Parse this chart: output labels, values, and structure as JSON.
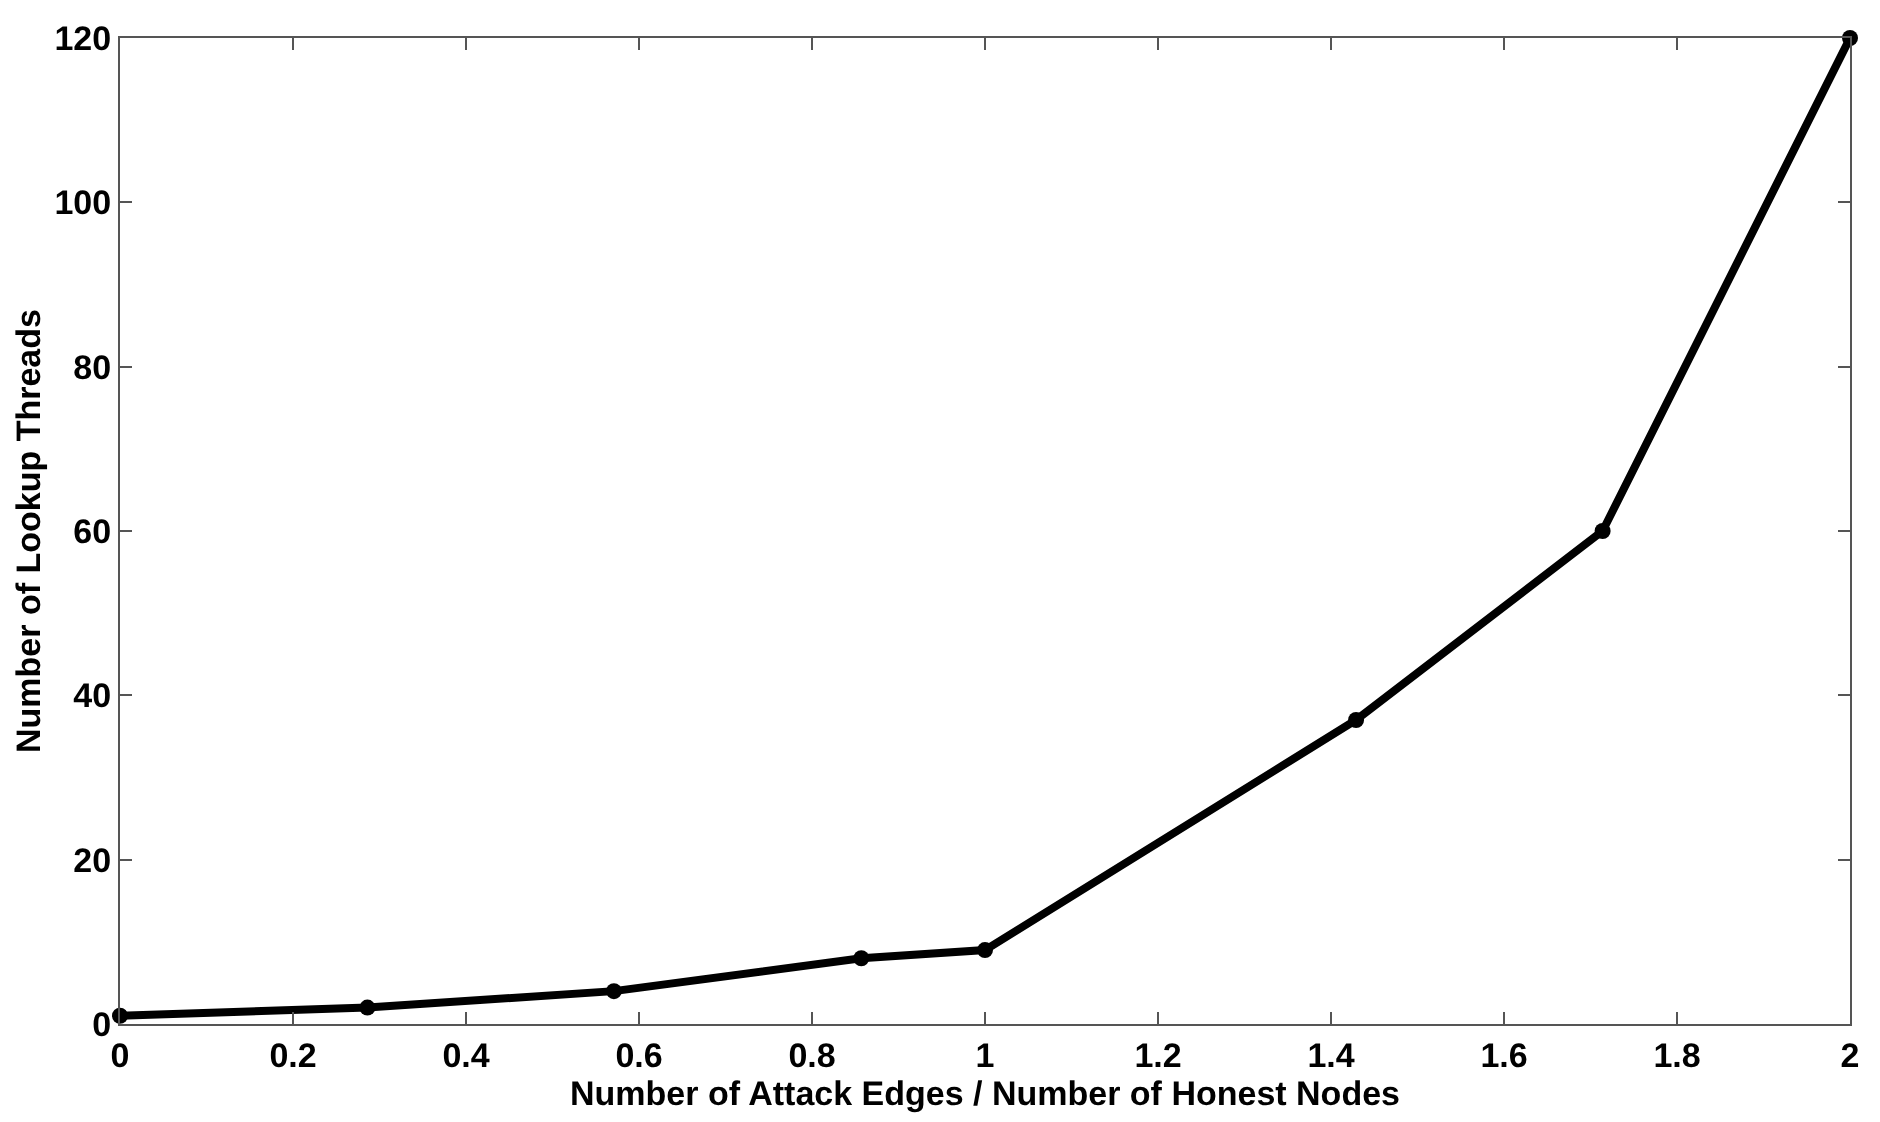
{
  "chart_data": {
    "type": "line",
    "xlabel": "Number of Attack Edges / Number of Honest Nodes",
    "ylabel": "Number of Lookup Threads",
    "x": [
      0,
      0.286,
      0.571,
      0.857,
      1,
      1.429,
      1.714,
      2
    ],
    "series": [
      {
        "color": "#000000",
        "values": [
          1,
          2,
          4,
          8,
          9,
          37,
          60,
          120
        ]
      }
    ],
    "xlim": [
      0,
      2
    ],
    "xticks": [
      0,
      0.2,
      0.4,
      0.6,
      0.8,
      1,
      1.2,
      1.4,
      1.6,
      1.8,
      2
    ],
    "ylim": [
      0,
      120
    ],
    "yticks": [
      0,
      20,
      40,
      60,
      80,
      100,
      120
    ],
    "marker": "circle",
    "line_style": "solid"
  }
}
